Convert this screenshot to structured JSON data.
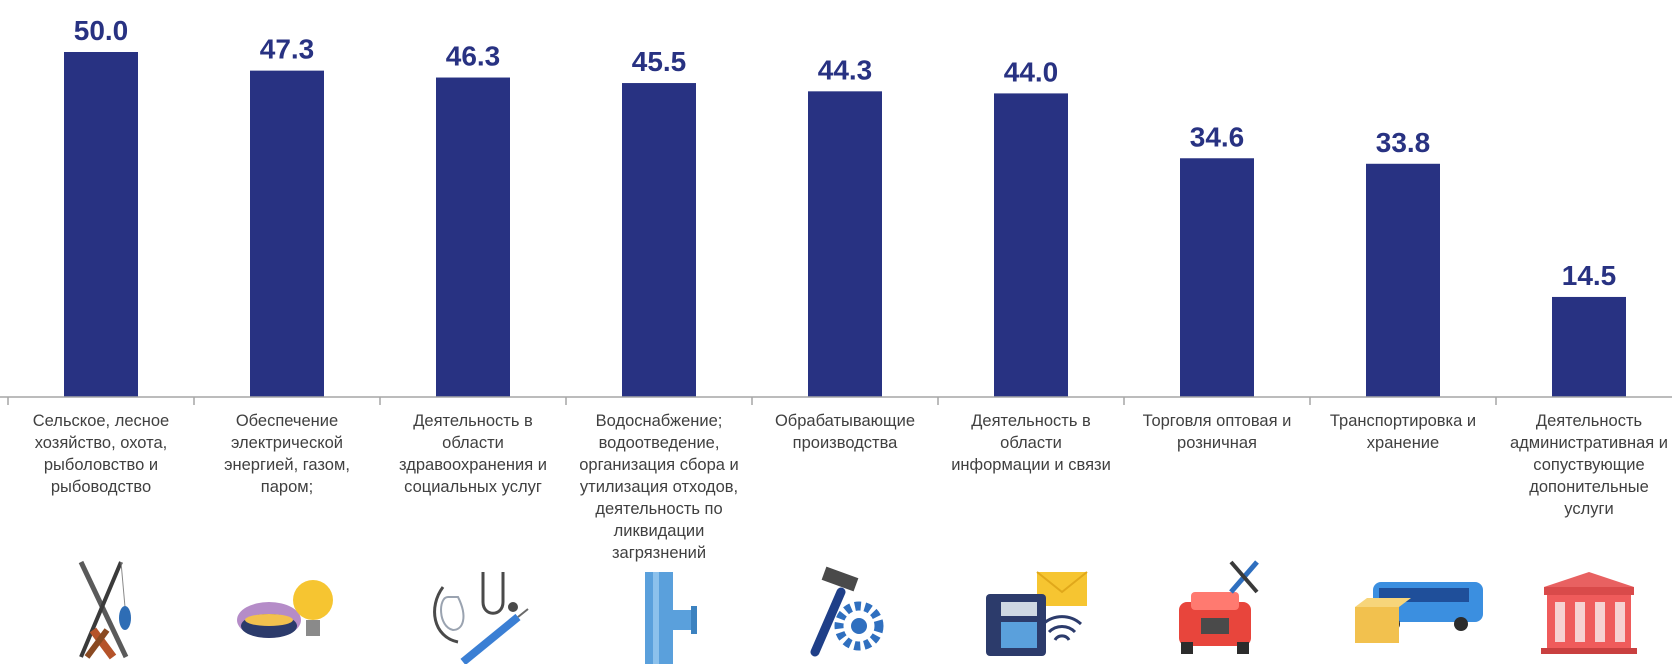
{
  "chart_data": {
    "type": "bar",
    "categories": [
      [
        "Сельское, лесное",
        "хозяйство, охота,",
        "рыболовство и",
        "рыбоводство"
      ],
      [
        "Обеспечение",
        "электрической",
        "энергией, газом,",
        "паром;"
      ],
      [
        "Деятельность в",
        "области",
        "здравоохранения и",
        "социальных услуг"
      ],
      [
        "Водоснабжение;",
        "водоотведение,",
        "организация  сбора и",
        "утилизация отходов,",
        "деятельность по",
        "ликвидации",
        "загрязнений"
      ],
      [
        "Обрабатывающие",
        "производства"
      ],
      [
        "Деятельность в",
        "области",
        "информации и связи"
      ],
      [
        "Торговля оптовая и",
        "розничная"
      ],
      [
        "Транспортировка и",
        "хранение"
      ],
      [
        "Деятельность",
        "административная и",
        "сопуствующие",
        "допонительные",
        "услуги"
      ]
    ],
    "values": [
      50.0,
      47.3,
      46.3,
      45.5,
      44.3,
      44.0,
      34.6,
      33.8,
      14.5
    ],
    "value_labels": [
      "50.0",
      "47.3",
      "46.3",
      "45.5",
      "44.3",
      "44.0",
      "34.6",
      "33.8",
      "14.5"
    ],
    "icons": [
      "fishing-rods-icon",
      "gas-burner-lightbulb-icon",
      "stethoscope-syringe-icon",
      "water-pipe-icon",
      "hammer-gear-icon",
      "phone-wifi-mail-icon",
      "car-tools-icon",
      "bus-box-icon",
      "government-building-icon"
    ],
    "ylim": [
      0,
      50
    ],
    "grid": false,
    "bar_color": "#283282"
  }
}
